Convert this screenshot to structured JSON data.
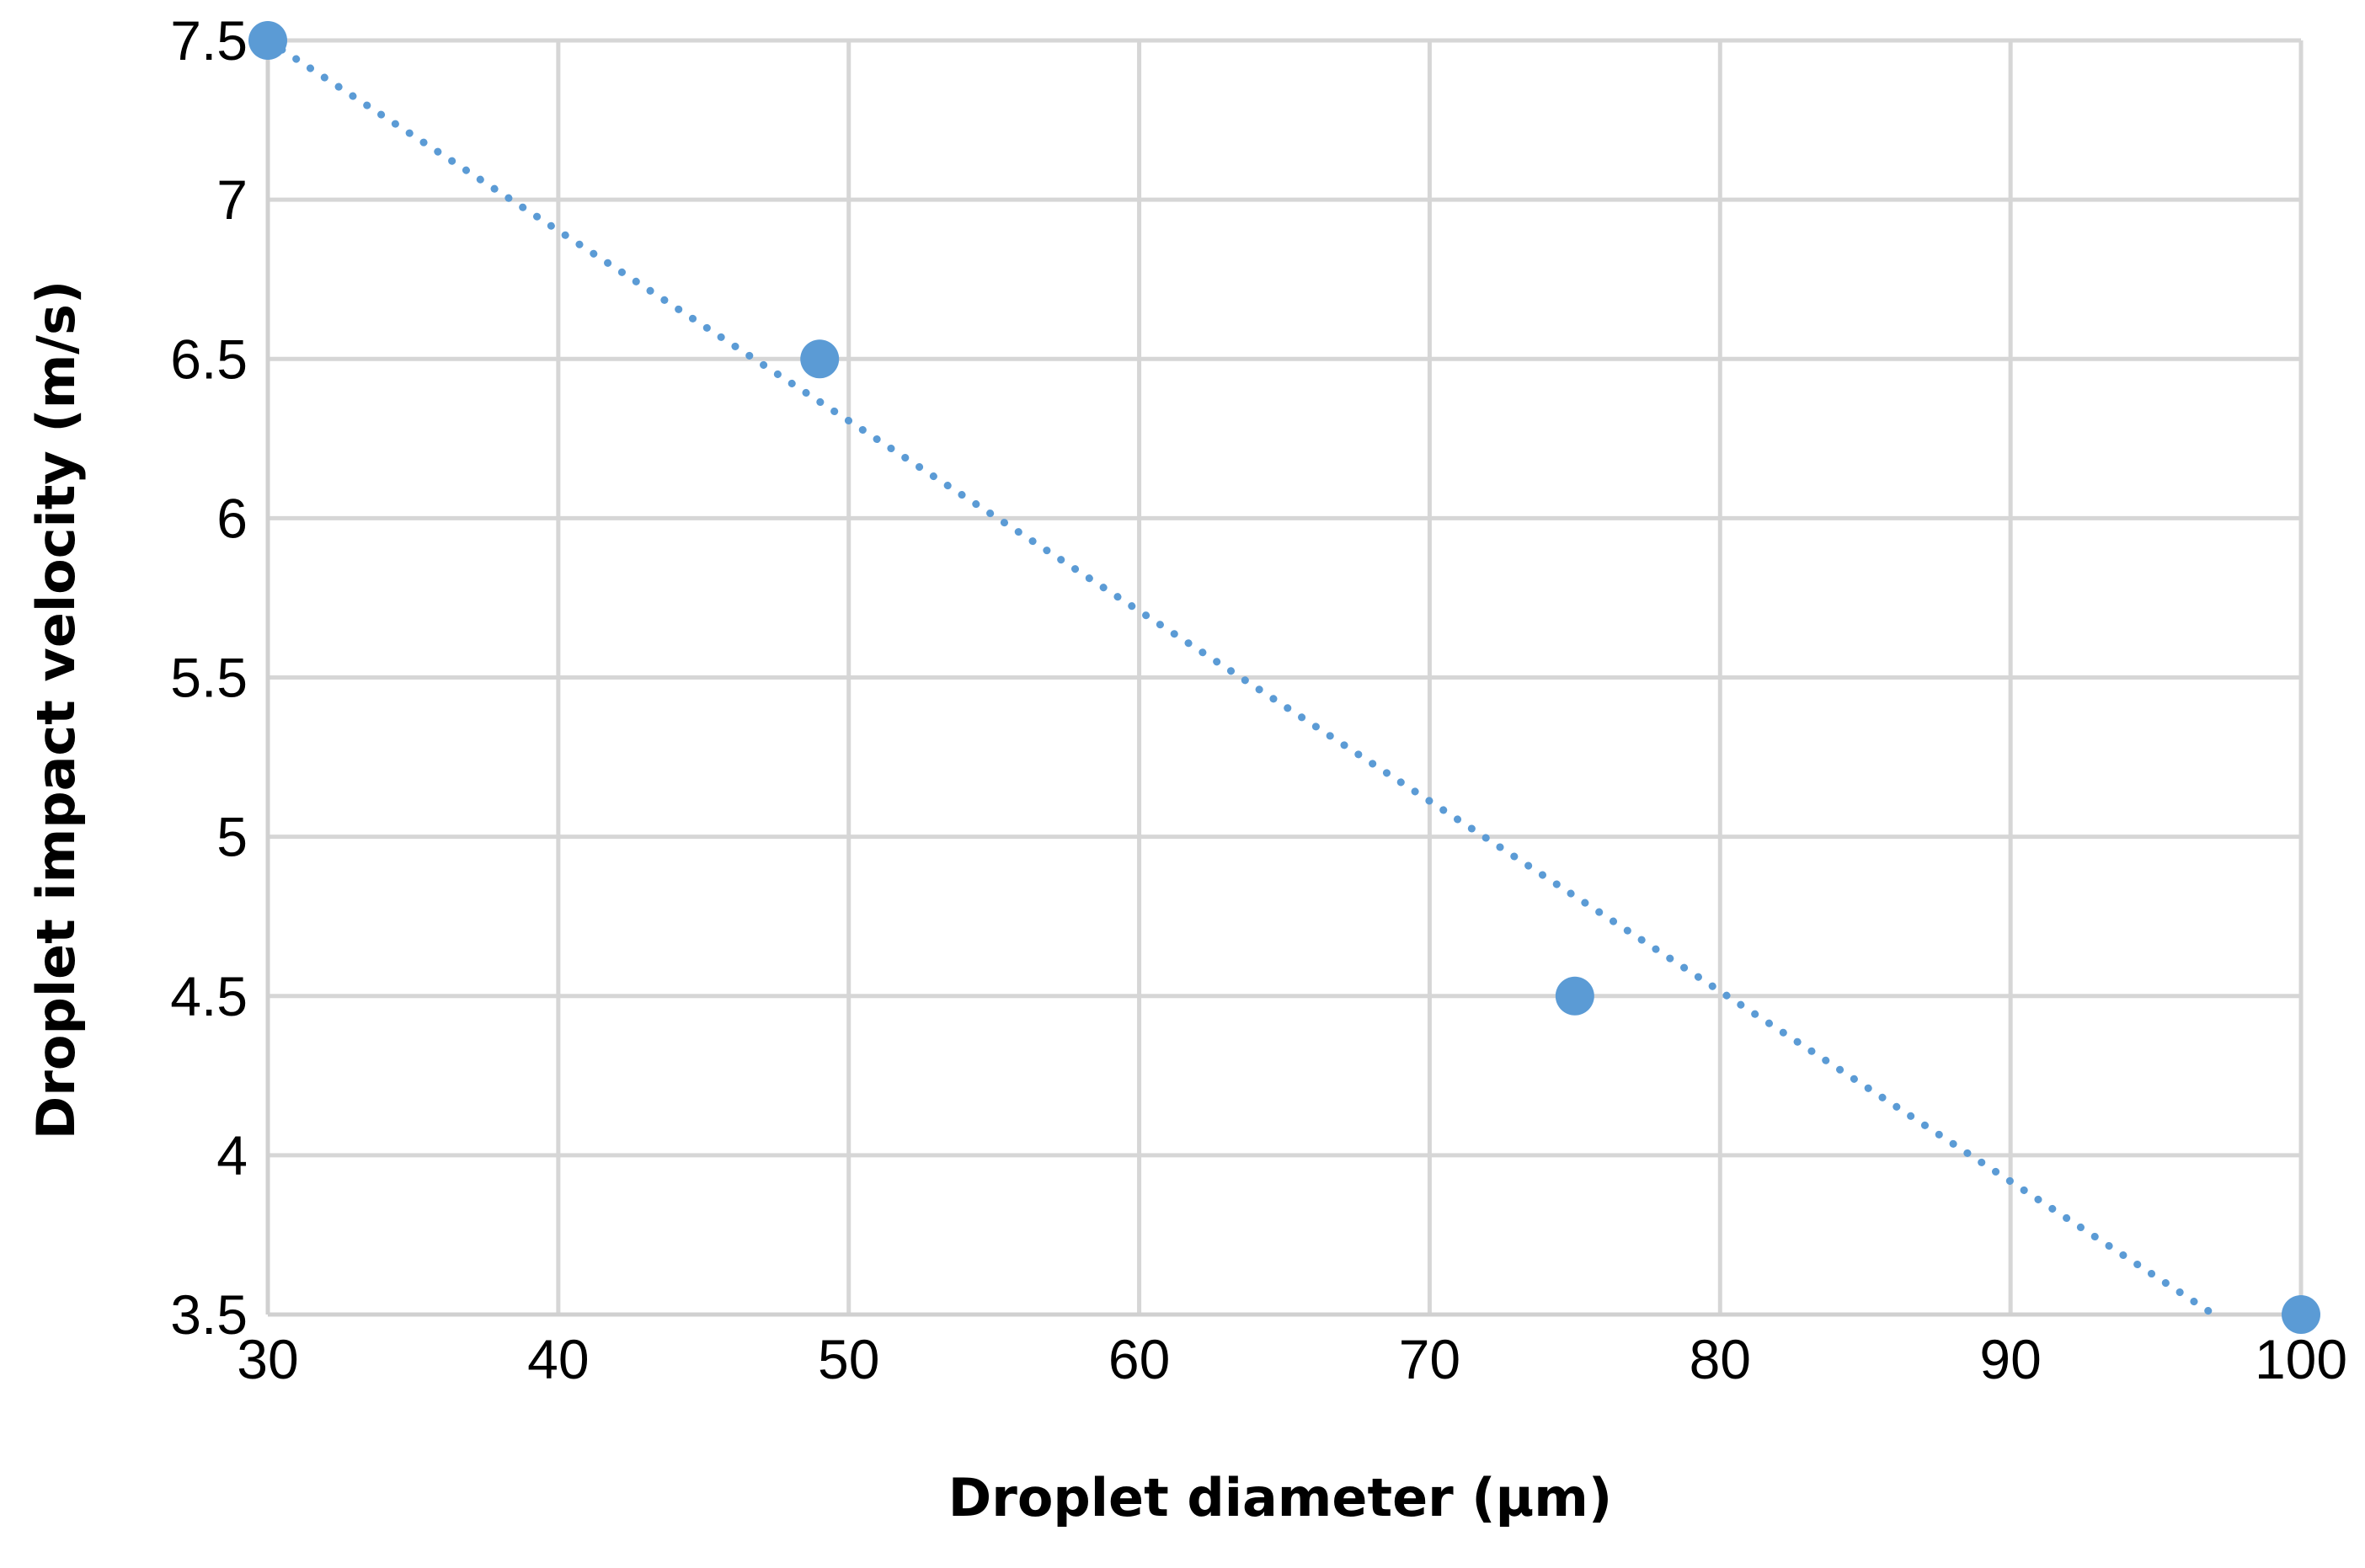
{
  "chart_data": {
    "type": "scatter",
    "title": "",
    "xlabel": "Droplet diameter (µm)",
    "ylabel": "Droplet impact velocity (m/s)",
    "xlim": [
      30,
      100
    ],
    "ylim": [
      3.5,
      7.5
    ],
    "x_ticks": [
      "30",
      "40",
      "50",
      "60",
      "70",
      "80",
      "90",
      "100"
    ],
    "y_ticks": [
      "3.5",
      "4",
      "4.5",
      "5",
      "5.5",
      "6",
      "6.5",
      "7",
      "7.5"
    ],
    "grid": true,
    "legend": "none",
    "series": [
      {
        "color": "#5b9bd5",
        "points": [
          {
            "x": 30,
            "y": 7.5
          },
          {
            "x": 49,
            "y": 6.5
          },
          {
            "x": 75,
            "y": 4.5
          },
          {
            "x": 100,
            "y": 3.5
          }
        ],
        "trendline": {
          "type": "linear",
          "style": "dotted",
          "from": {
            "x": 30,
            "y": 7.5
          },
          "to": {
            "x": 97,
            "y": 3.5
          }
        }
      }
    ]
  }
}
